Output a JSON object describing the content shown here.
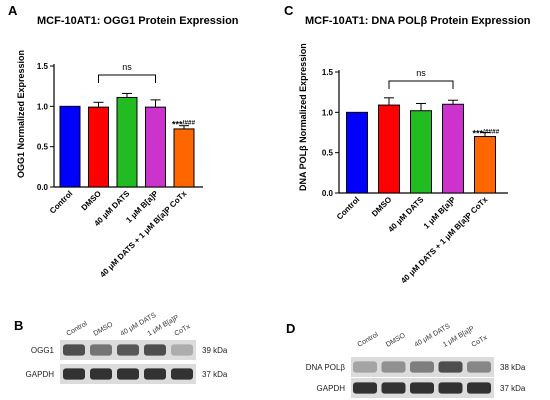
{
  "chart_data": [
    {
      "panel": "A",
      "type": "bar",
      "title": "MCF-10AT1: OGG1 Protein Expression",
      "ylabel": "OGG1 Normalized Expression",
      "xlabel": "",
      "ylim": [
        0,
        1.5
      ],
      "yticks": [
        "0.0",
        "0.5",
        "1.0",
        "1.5"
      ],
      "categories": [
        "Control",
        "DMSO",
        "40 μM DATS",
        "1 μM B[a]P",
        "40 μM DATS + 1 μM B[a]P CoTx"
      ],
      "values": [
        1.0,
        0.99,
        1.11,
        0.99,
        0.72
      ],
      "errors": [
        0.0,
        0.06,
        0.05,
        0.09,
        0.04
      ],
      "colors": [
        "#0000ff",
        "#ff0000",
        "#22bb22",
        "#cc33cc",
        "#ff6600"
      ],
      "bracket": {
        "from": 1,
        "to": 3,
        "label": "ns"
      },
      "annotation": {
        "index": 4,
        "stars": "***",
        "hashes": "/###"
      }
    },
    {
      "panel": "C",
      "type": "bar",
      "title": "MCF-10AT1: DNA POLβ Protein Expression",
      "ylabel": "DNA POLβ Normalized Expression",
      "xlabel": "",
      "ylim": [
        0,
        1.5
      ],
      "yticks": [
        "0.0",
        "0.5",
        "1.0",
        "1.5"
      ],
      "categories": [
        "Control",
        "DMSO",
        "40 μM DATS",
        "1 μM B[a]P",
        "40 μM DATS + 1 μM B[a]P CoTx"
      ],
      "values": [
        1.0,
        1.09,
        1.02,
        1.1,
        0.7
      ],
      "errors": [
        0.0,
        0.09,
        0.09,
        0.05,
        0.05
      ],
      "colors": [
        "#0000ff",
        "#ff0000",
        "#22bb22",
        "#cc33cc",
        "#ff6600"
      ],
      "bracket": {
        "from": 1,
        "to": 3,
        "label": "ns"
      },
      "annotation": {
        "index": 4,
        "stars": "***",
        "hashes": "/####"
      }
    }
  ],
  "blots": [
    {
      "panel": "B",
      "lanes": [
        "Control",
        "DMSO",
        "40 μM DATS",
        "1 μM B[a]P",
        "CoTx"
      ],
      "rows": [
        {
          "protein": "OGG1",
          "kda": "39 kDa",
          "intensity": [
            0.8,
            0.6,
            0.75,
            0.8,
            0.3
          ]
        },
        {
          "protein": "GAPDH",
          "kda": "37 kDa",
          "intensity": [
            0.95,
            0.95,
            0.95,
            0.95,
            0.95
          ]
        }
      ]
    },
    {
      "panel": "D",
      "lanes": [
        "Control",
        "DMSO",
        "40 μM DATS",
        "1 μM B[a]P",
        "CoTx"
      ],
      "rows": [
        {
          "protein": "DNA POLβ",
          "kda": "38 kDa",
          "intensity": [
            0.35,
            0.45,
            0.55,
            0.8,
            0.5
          ]
        },
        {
          "protein": "GAPDH",
          "kda": "37 kDa",
          "intensity": [
            0.95,
            0.95,
            0.95,
            0.95,
            0.95
          ]
        }
      ]
    }
  ]
}
